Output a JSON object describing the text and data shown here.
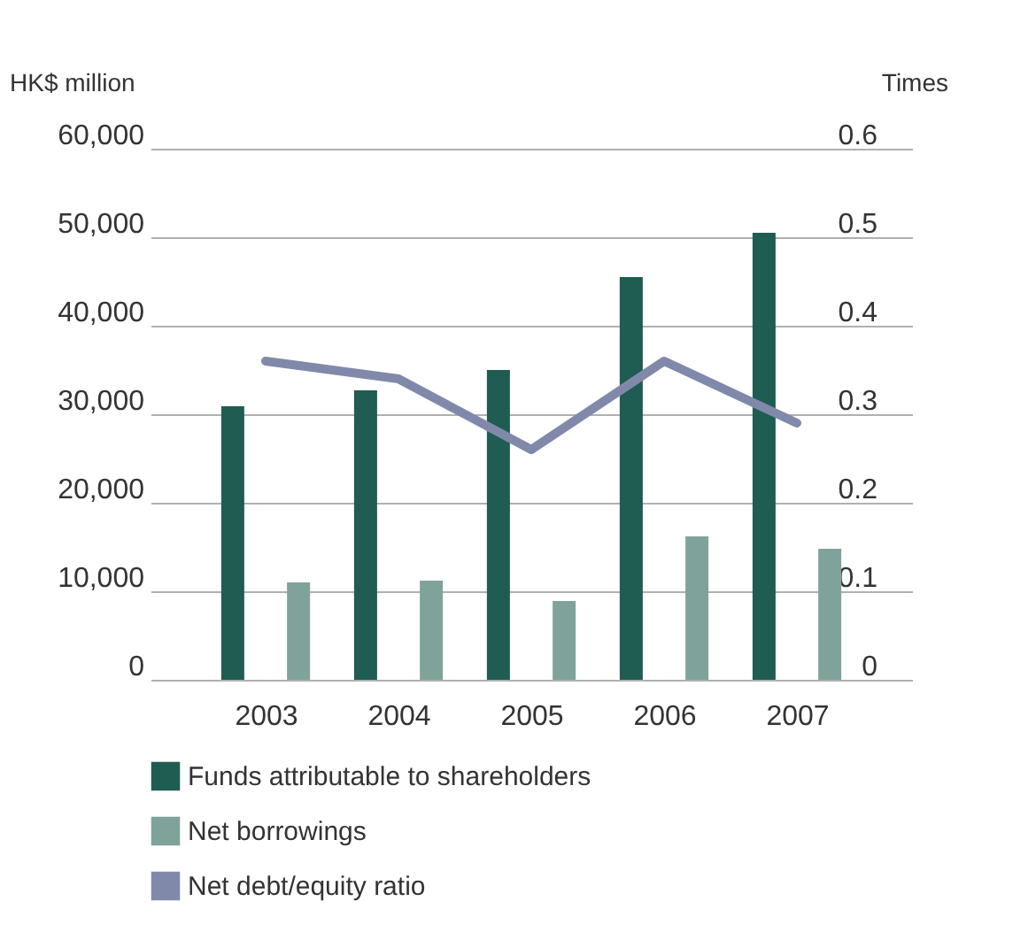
{
  "chart_data": {
    "type": "bar",
    "categories": [
      "2003",
      "2004",
      "2005",
      "2006",
      "2007"
    ],
    "ylabel": "HK$ million",
    "y2label": "Times",
    "ylim": [
      0,
      60000
    ],
    "yticks": [
      {
        "value": 0,
        "label": "0"
      },
      {
        "value": 10000,
        "label": "10,000"
      },
      {
        "value": 20000,
        "label": "20,000"
      },
      {
        "value": 30000,
        "label": "30,000"
      },
      {
        "value": 40000,
        "label": "40,000"
      },
      {
        "value": 50000,
        "label": "50,000"
      },
      {
        "value": 60000,
        "label": "60,000"
      }
    ],
    "y2lim": [
      0,
      0.6
    ],
    "y2ticks": [
      {
        "value": 0,
        "label": "0"
      },
      0.1,
      0.2,
      0.3,
      0.4,
      0.5,
      0.6
    ],
    "grid": "y",
    "legend": "bottom",
    "series": [
      {
        "name": "Funds attributable to shareholders",
        "type": "bar",
        "color": "#1f5c52",
        "values": [
          30900,
          32700,
          35000,
          45500,
          50500
        ]
      },
      {
        "name": "Net borrowings",
        "type": "bar",
        "color": "#7fa39b",
        "values": [
          11000,
          11200,
          8900,
          16200,
          14800
        ]
      },
      {
        "name": "Net debt/equity ratio",
        "type": "line",
        "axis": "y2",
        "color": "#8189ab",
        "values": [
          0.36,
          0.34,
          0.26,
          0.36,
          0.29
        ]
      }
    ]
  }
}
